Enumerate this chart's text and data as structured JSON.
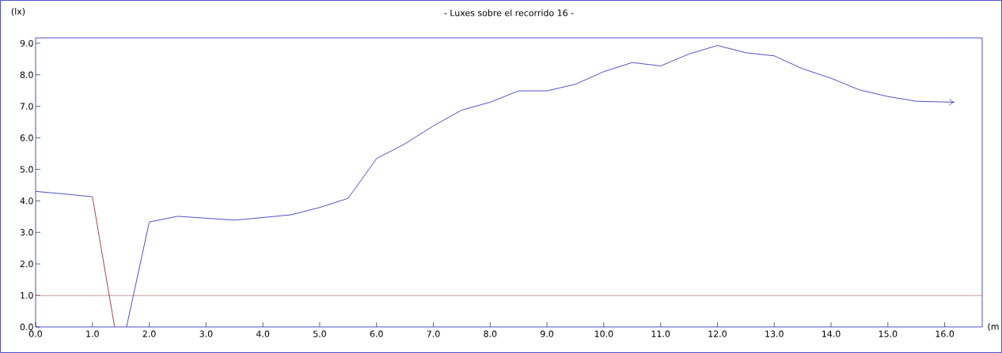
{
  "chart_data": {
    "type": "line",
    "title": "- Luxes sobre el recorrido 16 -",
    "xlabel": "(m",
    "ylabel": "(lx)",
    "series": [
      {
        "color": "#2323b8",
        "x": [
          0,
          0.5,
          1
        ],
        "values": [
          4.3,
          4.22,
          4.13
        ]
      },
      {
        "color": "#8b1a1a",
        "x": [
          1,
          1.39
        ],
        "values": [
          4.13,
          0
        ]
      },
      {
        "color": "#2323b8",
        "x": [
          1.6,
          2,
          2.5,
          3,
          3.5,
          4,
          4.5,
          5,
          5.5,
          6,
          6.5,
          7,
          7.5,
          8,
          8.5,
          9,
          9.5,
          10,
          10.5,
          11,
          11.5,
          12,
          12.5,
          13,
          13.5,
          14,
          14.5,
          15,
          15.5,
          16.17
        ],
        "values": [
          0,
          3.33,
          3.51,
          3.45,
          3.39,
          3.47,
          3.56,
          3.79,
          4.08,
          5.34,
          5.81,
          6.38,
          6.88,
          7.13,
          7.49,
          7.49,
          7.7,
          8.1,
          8.39,
          8.28,
          8.66,
          8.93,
          8.7,
          8.6,
          8.19,
          7.89,
          7.52,
          7.31,
          7.16,
          7.13
        ]
      }
    ],
    "ref_lines": [
      {
        "axis": "y",
        "value": 1,
        "color": "#b06060"
      }
    ],
    "xlim": [
      0,
      16.66
    ],
    "ylim": [
      0,
      9.17
    ],
    "xticks": [
      {
        "value": 0,
        "label": "0.0"
      },
      {
        "value": 1,
        "label": "1.0"
      },
      {
        "value": 2,
        "label": "2.0"
      },
      {
        "value": 3,
        "label": "3.0"
      },
      {
        "value": 4,
        "label": "4.0"
      },
      {
        "value": 5,
        "label": "5.0"
      },
      {
        "value": 6,
        "label": "6.0"
      },
      {
        "value": 7,
        "label": "7.0"
      },
      {
        "value": 8,
        "label": "8.0"
      },
      {
        "value": 9,
        "label": "9.0"
      },
      {
        "value": 10,
        "label": "10.0"
      },
      {
        "value": 11,
        "label": "11.0"
      },
      {
        "value": 12,
        "label": "12.0"
      },
      {
        "value": 13,
        "label": "13.0"
      },
      {
        "value": 14,
        "label": "14.0"
      },
      {
        "value": 15,
        "label": "15.0"
      },
      {
        "value": 16,
        "label": "16.0"
      }
    ],
    "yticks": [
      {
        "value": 0,
        "label": "0.0"
      },
      {
        "value": 1,
        "label": "1.0"
      },
      {
        "value": 2,
        "label": "2.0"
      },
      {
        "value": 3,
        "label": "3.0"
      },
      {
        "value": 4,
        "label": "4.0"
      },
      {
        "value": 5,
        "label": "5.0"
      },
      {
        "value": 6,
        "label": "6.0"
      },
      {
        "value": 7,
        "label": "7.0"
      },
      {
        "value": 8,
        "label": "8.0"
      },
      {
        "value": 9,
        "label": "9.0"
      }
    ],
    "grid": false,
    "marker": "none",
    "line_style": "solid"
  }
}
